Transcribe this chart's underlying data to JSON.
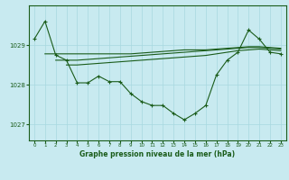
{
  "title": "Graphe pression niveau de la mer (hPa)",
  "background_color": "#c8eaf0",
  "grid_color": "#a8d8e0",
  "line_color": "#1a5c1a",
  "xlim": [
    -0.5,
    23.5
  ],
  "ylim": [
    1026.6,
    1030.0
  ],
  "yticks": [
    1027,
    1028,
    1029
  ],
  "xtick_labels": [
    "0",
    "1",
    "2",
    "3",
    "4",
    "5",
    "6",
    "7",
    "8",
    "9",
    "10",
    "11",
    "12",
    "13",
    "14",
    "15",
    "16",
    "17",
    "18",
    "19",
    "20",
    "21",
    "22",
    "23"
  ],
  "series": {
    "main": {
      "x": [
        0,
        1,
        2,
        3,
        4,
        5,
        6,
        7,
        8,
        9,
        10,
        11,
        12,
        13,
        14,
        15,
        16,
        17,
        18,
        19,
        20,
        21,
        22,
        23
      ],
      "y": [
        1029.15,
        1029.6,
        1028.75,
        1028.62,
        1028.05,
        1028.05,
        1028.22,
        1028.08,
        1028.08,
        1027.78,
        1027.58,
        1027.48,
        1027.48,
        1027.28,
        1027.12,
        1027.28,
        1027.48,
        1028.25,
        1028.62,
        1028.82,
        1029.38,
        1029.15,
        1028.82,
        1028.78
      ]
    },
    "flat1": {
      "x": [
        1,
        2,
        3,
        4,
        5,
        6,
        7,
        8,
        9,
        10,
        11,
        12,
        13,
        14,
        15,
        16,
        17,
        18,
        19,
        20,
        21,
        22,
        23
      ],
      "y": [
        1028.78,
        1028.78,
        1028.78,
        1028.78,
        1028.78,
        1028.78,
        1028.78,
        1028.78,
        1028.78,
        1028.8,
        1028.82,
        1028.84,
        1028.86,
        1028.88,
        1028.88,
        1028.88,
        1028.9,
        1028.92,
        1028.94,
        1028.96,
        1028.96,
        1028.94,
        1028.92
      ]
    },
    "flat2": {
      "x": [
        2,
        3,
        4,
        5,
        6,
        7,
        8,
        9,
        10,
        11,
        12,
        13,
        14,
        15,
        16,
        17,
        18,
        19,
        20,
        21,
        22,
        23
      ],
      "y": [
        1028.62,
        1028.62,
        1028.62,
        1028.64,
        1028.66,
        1028.68,
        1028.7,
        1028.72,
        1028.74,
        1028.76,
        1028.78,
        1028.8,
        1028.82,
        1028.84,
        1028.86,
        1028.88,
        1028.9,
        1028.92,
        1028.94,
        1028.94,
        1028.92,
        1028.9
      ]
    },
    "flat3": {
      "x": [
        3,
        4,
        5,
        6,
        7,
        8,
        9,
        10,
        11,
        12,
        13,
        14,
        15,
        16,
        17,
        18,
        19,
        20,
        21,
        22,
        23
      ],
      "y": [
        1028.5,
        1028.5,
        1028.52,
        1028.54,
        1028.56,
        1028.58,
        1028.6,
        1028.62,
        1028.64,
        1028.66,
        1028.68,
        1028.7,
        1028.72,
        1028.74,
        1028.78,
        1028.82,
        1028.86,
        1028.88,
        1028.9,
        1028.88,
        1028.86
      ]
    }
  }
}
